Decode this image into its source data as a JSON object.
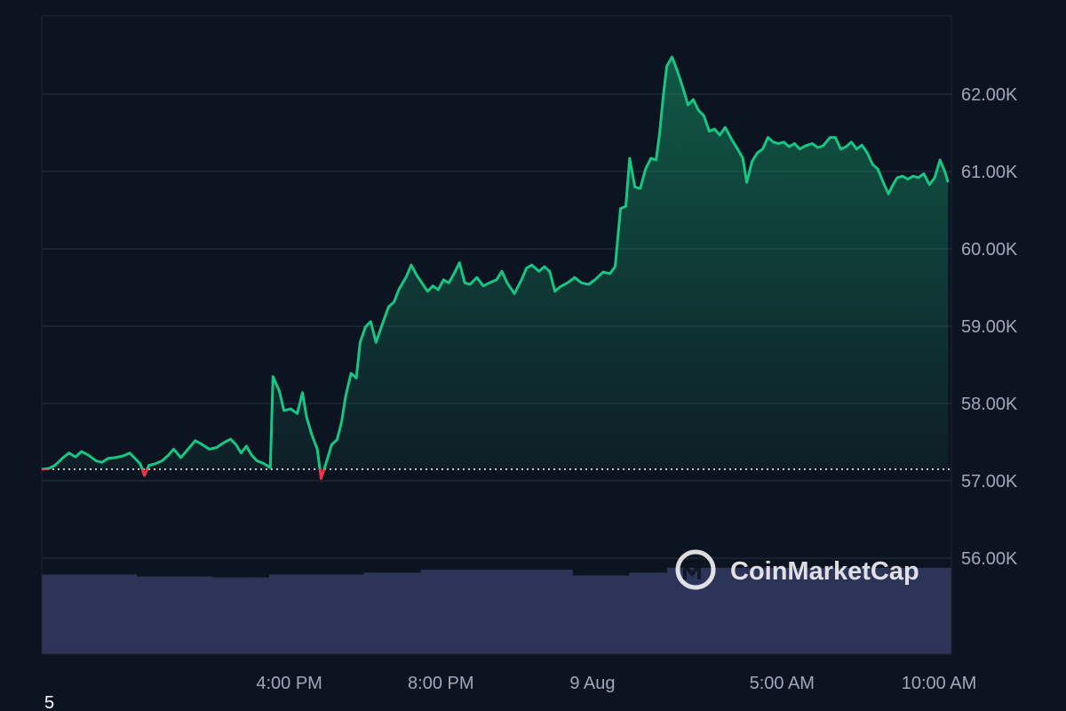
{
  "chart_data": {
    "type": "line",
    "color": "#16c784",
    "below_color": "#ea3943",
    "baseline": 57150,
    "xlim": [
      -14.53,
      9.47
    ],
    "xticks": [
      {
        "value": -8,
        "label": "4:00 PM"
      },
      {
        "value": -4,
        "label": "8:00 PM"
      },
      {
        "value": 0,
        "label": "9 Aug"
      },
      {
        "value": 5,
        "label": "5:00 AM"
      },
      {
        "value": 10,
        "label": "10:00 AM"
      }
    ],
    "ylim": [
      54760,
      63010
    ],
    "yticks": [
      {
        "value": 56000,
        "label": "56.00K"
      },
      {
        "value": 57000,
        "label": "57.00K"
      },
      {
        "value": 58000,
        "label": "58.00K"
      },
      {
        "value": 59000,
        "label": "59.00K"
      },
      {
        "value": 60000,
        "label": "60.00K"
      },
      {
        "value": 61000,
        "label": "61.00K"
      },
      {
        "value": 62000,
        "label": "62.00K"
      }
    ],
    "grid": true,
    "x": [
      -14.53,
      -14.34,
      -14.18,
      -13.99,
      -13.81,
      -13.64,
      -13.48,
      -13.29,
      -13.1,
      -12.94,
      -12.78,
      -12.59,
      -12.4,
      -12.21,
      -12.07,
      -11.93,
      -11.82,
      -11.7,
      -11.54,
      -11.35,
      -11.19,
      -11.05,
      -10.86,
      -10.67,
      -10.48,
      -10.3,
      -10.11,
      -9.92,
      -9.74,
      -9.55,
      -9.41,
      -9.27,
      -9.13,
      -8.99,
      -8.85,
      -8.66,
      -8.5,
      -8.43,
      -8.26,
      -8.14,
      -7.96,
      -7.79,
      -7.65,
      -7.54,
      -7.4,
      -7.26,
      -7.16,
      -7.02,
      -6.88,
      -6.74,
      -6.62,
      -6.51,
      -6.37,
      -6.23,
      -6.13,
      -5.99,
      -5.85,
      -5.71,
      -5.57,
      -5.38,
      -5.24,
      -5.1,
      -4.92,
      -4.78,
      -4.64,
      -4.5,
      -4.35,
      -4.21,
      -4.07,
      -3.93,
      -3.79,
      -3.65,
      -3.51,
      -3.37,
      -3.23,
      -3.05,
      -2.88,
      -2.72,
      -2.53,
      -2.39,
      -2.25,
      -2.06,
      -1.88,
      -1.74,
      -1.6,
      -1.41,
      -1.27,
      -1.13,
      -0.99,
      -0.85,
      -0.66,
      -0.47,
      -0.29,
      -0.1,
      0.09,
      0.28,
      0.46,
      0.6,
      0.74,
      0.88,
      0.98,
      1.12,
      1.26,
      1.4,
      1.54,
      1.68,
      1.77,
      1.87,
      1.96,
      2.1,
      2.24,
      2.38,
      2.52,
      2.66,
      2.8,
      2.94,
      3.08,
      3.22,
      3.36,
      3.5,
      3.69,
      3.83,
      3.97,
      4.07,
      4.21,
      4.35,
      4.49,
      4.63,
      4.77,
      4.91,
      5.05,
      5.19,
      5.33,
      5.47,
      5.61,
      5.8,
      5.94,
      6.08,
      6.27,
      6.41,
      6.55,
      6.69,
      6.83,
      6.97,
      7.11,
      7.25,
      7.39,
      7.53,
      7.67,
      7.81,
      7.9,
      8.04,
      8.18,
      8.32,
      8.46,
      8.6,
      8.74,
      8.89,
      9.03,
      9.17,
      9.31,
      9.38
    ],
    "values": [
      57150,
      57160,
      57200,
      57290,
      57360,
      57310,
      57380,
      57330,
      57260,
      57240,
      57290,
      57300,
      57320,
      57360,
      57290,
      57220,
      57070,
      57200,
      57220,
      57260,
      57330,
      57410,
      57300,
      57410,
      57520,
      57470,
      57410,
      57430,
      57490,
      57540,
      57470,
      57360,
      57450,
      57330,
      57260,
      57220,
      57170,
      58350,
      58160,
      57910,
      57930,
      57870,
      58140,
      57820,
      57590,
      57410,
      57030,
      57240,
      57470,
      57530,
      57760,
      58100,
      58390,
      58330,
      58790,
      58990,
      59060,
      58790,
      58990,
      59250,
      59310,
      59480,
      59630,
      59790,
      59660,
      59560,
      59450,
      59520,
      59470,
      59600,
      59560,
      59680,
      59820,
      59560,
      59540,
      59630,
      59520,
      59560,
      59600,
      59710,
      59560,
      59420,
      59590,
      59750,
      59790,
      59710,
      59770,
      59710,
      59450,
      59510,
      59560,
      59630,
      59560,
      59540,
      59610,
      59700,
      59680,
      59770,
      60520,
      60550,
      61170,
      60800,
      60780,
      61030,
      61170,
      61150,
      61490,
      61980,
      62360,
      62480,
      62300,
      62090,
      61860,
      61930,
      61790,
      61720,
      61520,
      61550,
      61470,
      61570,
      61400,
      61290,
      61170,
      60860,
      61130,
      61240,
      61290,
      61440,
      61380,
      61360,
      61380,
      61320,
      61360,
      61290,
      61330,
      61360,
      61310,
      61330,
      61440,
      61440,
      61290,
      61320,
      61380,
      61290,
      61340,
      61240,
      61090,
      61030,
      60860,
      60710,
      60800,
      60920,
      60940,
      60900,
      60940,
      60920,
      60970,
      60830,
      60920,
      61150,
      60980,
      60860
    ],
    "volume": {
      "color": "#2c3558",
      "ylim": [
        0,
        100
      ],
      "values": [
        83,
        83,
        83,
        83,
        83,
        81,
        81,
        81,
        81,
        80,
        80,
        80,
        83,
        83,
        83,
        83,
        83,
        85,
        85,
        85,
        88,
        88,
        88,
        88,
        88,
        88,
        88,
        88,
        82,
        82,
        82,
        85,
        85,
        90,
        90,
        90,
        90,
        90,
        90,
        90,
        90,
        90,
        90,
        90,
        90,
        90,
        90,
        90
      ]
    },
    "watermark": "CoinMarketCap",
    "corner_label": "5"
  }
}
